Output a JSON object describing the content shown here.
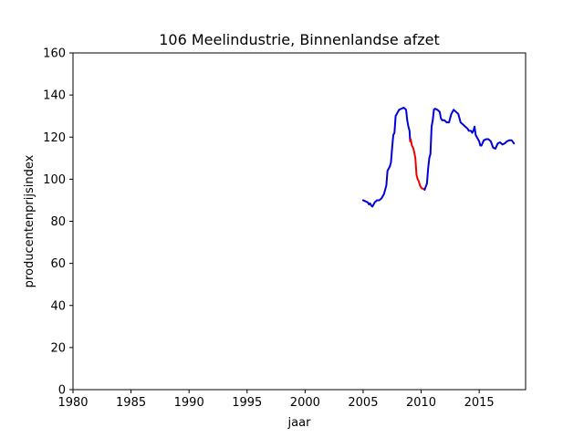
{
  "chart_data": {
    "type": "line",
    "title": "106 Meelindustrie, Binnenlandse afzet",
    "xlabel": "jaar",
    "ylabel": "producentenprijsindex",
    "xlim": [
      1980,
      2019
    ],
    "ylim": [
      0,
      160
    ],
    "xticks": [
      1980,
      1985,
      1990,
      1995,
      2000,
      2005,
      2010,
      2015
    ],
    "yticks": [
      0,
      20,
      40,
      60,
      80,
      100,
      120,
      140,
      160
    ],
    "grid": false,
    "series": [
      {
        "color": "#0000dd",
        "x": [
          2005.0,
          2005.2,
          2005.4,
          2005.5,
          2005.6,
          2005.7,
          2005.8,
          2005.9,
          2006.0,
          2006.1,
          2006.2,
          2006.4,
          2006.6,
          2006.8,
          2006.9,
          2007.0,
          2007.1,
          2007.2,
          2007.3,
          2007.4,
          2007.5,
          2007.6,
          2007.7,
          2007.8,
          2007.9,
          2008.0,
          2008.1,
          2008.3,
          2008.5,
          2008.7,
          2008.8,
          2008.9,
          2009.0,
          2009.05
        ],
        "values": [
          90,
          89.5,
          89,
          88,
          88.5,
          87.5,
          87,
          88,
          89,
          89.5,
          90,
          90,
          91,
          93,
          95,
          97,
          104,
          105,
          106,
          108,
          115,
          121,
          122,
          130,
          131,
          132,
          133,
          133.5,
          134,
          133,
          128,
          125,
          123,
          118
        ]
      },
      {
        "color": "#ee0000",
        "x": [
          2009.05,
          2009.1,
          2009.2,
          2009.3,
          2009.4,
          2009.5,
          2009.6,
          2009.7,
          2009.8,
          2009.9,
          2010.0,
          2010.1,
          2010.2,
          2010.3
        ],
        "values": [
          118,
          119,
          116,
          115,
          113,
          110,
          102,
          100,
          99,
          97,
          96,
          95.5,
          95.5,
          95
        ]
      },
      {
        "color": "#0000dd",
        "x": [
          2010.3,
          2010.5,
          2010.6,
          2010.7,
          2010.8,
          2010.9,
          2011.0,
          2011.1,
          2011.2,
          2011.4,
          2011.6,
          2011.7,
          2011.8,
          2012.0,
          2012.2,
          2012.4,
          2012.6,
          2012.8,
          2013.0,
          2013.2,
          2013.4,
          2013.6,
          2013.8,
          2014.0,
          2014.1,
          2014.3,
          2014.4,
          2014.5,
          2014.6,
          2014.7,
          2014.8,
          2015.0,
          2015.1,
          2015.2,
          2015.4,
          2015.6,
          2015.8,
          2016.0,
          2016.2,
          2016.4,
          2016.6,
          2016.8,
          2017.0,
          2017.2,
          2017.4,
          2017.6,
          2017.8,
          2018.0
        ],
        "values": [
          95,
          98,
          105,
          110,
          112,
          125,
          128,
          133,
          133.5,
          133,
          132,
          129,
          128,
          128,
          127,
          127,
          131,
          133,
          132,
          131,
          127,
          126,
          125,
          124,
          123,
          123,
          122,
          123,
          125,
          121,
          120,
          118,
          116,
          116,
          118.5,
          119,
          119,
          118,
          115,
          114.5,
          117,
          117.5,
          116.5,
          117,
          118,
          118.5,
          118.5,
          117
        ]
      }
    ]
  }
}
